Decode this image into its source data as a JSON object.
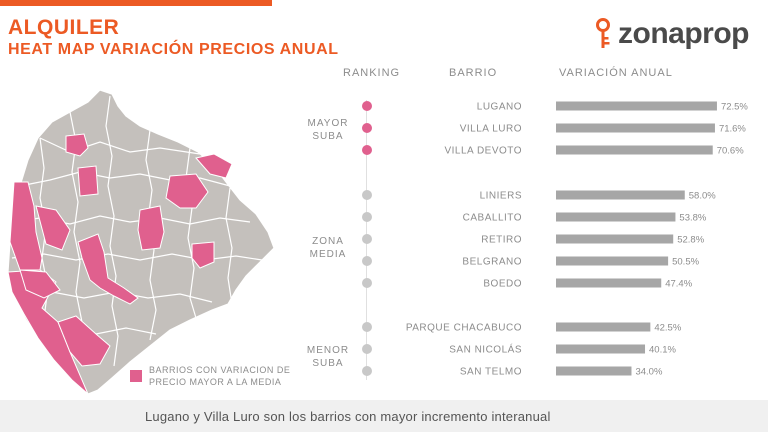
{
  "header": {
    "title": "ALQUILER",
    "subtitle": "HEAT MAP VARIACIÓN PRECIOS ANUAL",
    "logo_text": "zonaprop"
  },
  "columns": {
    "ranking": "RANKING",
    "barrio": "BARRIO",
    "variacion": "VARIACIÓN ANUAL"
  },
  "groups": [
    {
      "line1": "MAYOR",
      "line2": "SUBA"
    },
    {
      "line1": "ZONA",
      "line2": "MEDIA"
    },
    {
      "line1": "MENOR",
      "line2": "SUBA"
    }
  ],
  "legend": {
    "line1": "BARRIOS CON VARIACION DE",
    "line2": "PRECIO MAYOR A LA MEDIA"
  },
  "footer": "Lugano y Villa Luro son los barrios con mayor incremento interanual",
  "colors": {
    "accent": "#ec5a24",
    "pink": "#e0608e",
    "gray_dot": "#c8c8c8",
    "bar": "#a6a6a6",
    "map_gray": "#c4c0bc"
  },
  "chart_data": {
    "type": "bar",
    "categories": [
      "LUGANO",
      "VILLA LURO",
      "VILLA DEVOTO",
      "LINIERS",
      "CABALLITO",
      "RETIRO",
      "BELGRANO",
      "BOEDO",
      "PARQUE CHACABUCO",
      "SAN NICOLÁS",
      "SAN TELMO"
    ],
    "values": [
      72.5,
      71.6,
      70.6,
      58.0,
      53.8,
      52.8,
      50.5,
      47.4,
      42.5,
      40.1,
      34.0
    ],
    "labels": [
      "72.5%",
      "71.6%",
      "70.6%",
      "58.0%",
      "53.8%",
      "52.8%",
      "50.5%",
      "47.4%",
      "42.5%",
      "40.1%",
      "34.0%"
    ],
    "groups": [
      0,
      0,
      0,
      1,
      1,
      1,
      1,
      1,
      2,
      2,
      2
    ]
  }
}
